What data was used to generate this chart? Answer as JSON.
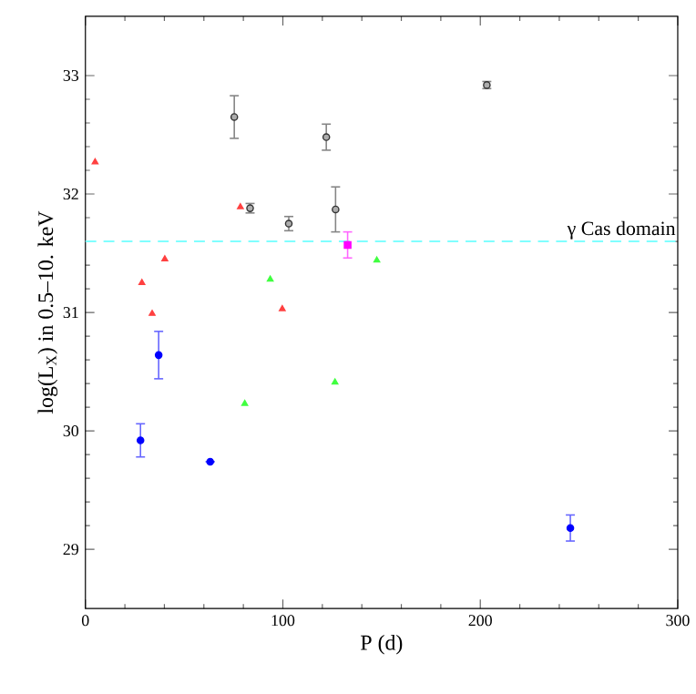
{
  "chart_data": {
    "type": "scatter",
    "xlabel": "P (d)",
    "ylabel": "log(L$_{X}$) in 0.5–10. keV",
    "xlim": [
      0,
      300
    ],
    "ylim": [
      28.5,
      33.5
    ],
    "xticks": [
      0,
      100,
      200,
      300
    ],
    "yticks": [
      29,
      30,
      31,
      32,
      33
    ],
    "series": [
      {
        "color": "#333333",
        "marker": "circle",
        "x": [
          75.4,
          83.4,
          103,
          122,
          126.7,
          203.3
        ],
        "values": [
          32.65,
          31.88,
          31.75,
          32.48,
          31.87,
          32.92
        ],
        "errors": [
          0.18,
          0.04,
          0.06,
          0.11,
          0.19,
          0.03
        ]
      },
      {
        "color": "#0000ff",
        "marker": "circle",
        "x": [
          27.9,
          37.1,
          63.2,
          245.6
        ],
        "values": [
          29.92,
          30.64,
          29.74,
          29.18
        ],
        "errors": [
          0.14,
          0.2,
          null,
          0.11
        ]
      },
      {
        "color": "#ff00ff",
        "marker": "square",
        "x": [
          132.8
        ],
        "values": [
          31.57
        ],
        "errors": [
          0.11
        ]
      },
      {
        "color": "#ff4040",
        "marker": "triangle",
        "x": [
          4.9,
          28.6,
          33.8,
          40.2,
          78.5,
          99.7
        ],
        "values": [
          32.27,
          31.25,
          30.99,
          31.45,
          31.89,
          31.03
        ]
      },
      {
        "color": "#40ff40",
        "marker": "triangle",
        "x": [
          80.7,
          93.6,
          126.4,
          147.6
        ],
        "values": [
          30.23,
          31.28,
          30.41,
          31.44
        ]
      }
    ],
    "ref_lines": [
      {
        "axis": "y",
        "value": 31.6,
        "label": "γ Cas domain",
        "color": "#80ffff",
        "line_style": "dashed"
      }
    ]
  }
}
